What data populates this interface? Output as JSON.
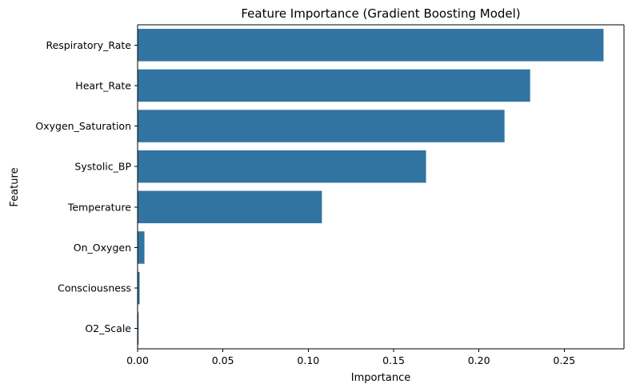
{
  "chart_data": {
    "type": "bar",
    "orientation": "horizontal",
    "title": "Feature Importance (Gradient Boosting Model)",
    "xlabel": "Importance",
    "ylabel": "Feature",
    "xlim": [
      0,
      0.285
    ],
    "xticks": [
      "0.00",
      "0.05",
      "0.10",
      "0.15",
      "0.20",
      "0.25"
    ],
    "categories": [
      "Respiratory_Rate",
      "Heart_Rate",
      "Oxygen_Saturation",
      "Systolic_BP",
      "Temperature",
      "On_Oxygen",
      "Consciousness",
      "O2_Scale"
    ],
    "values": [
      0.273,
      0.23,
      0.215,
      0.169,
      0.108,
      0.004,
      0.0012,
      0.0006
    ],
    "bar_color": "#3274a1",
    "grid": false,
    "legend": "none"
  }
}
